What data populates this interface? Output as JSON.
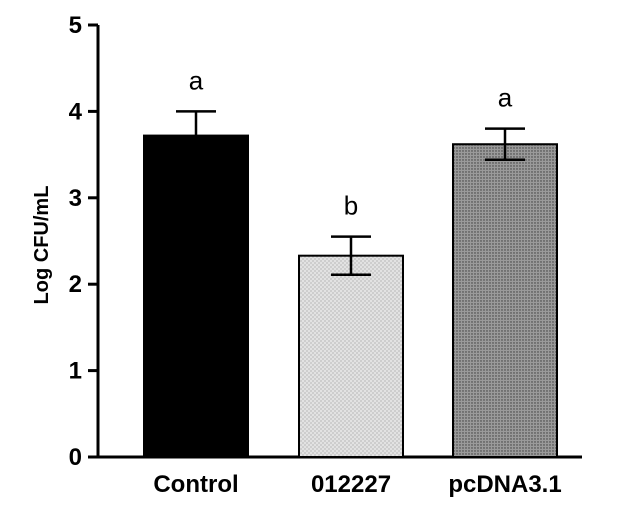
{
  "chart_data": {
    "type": "bar",
    "title": "",
    "xlabel": "",
    "ylabel": "Log CFU/mL",
    "ylim": [
      0,
      5
    ],
    "yticks": [
      0,
      1,
      2,
      3,
      4,
      5
    ],
    "grid": false,
    "categories": [
      "Control",
      "012227",
      "pcDNA3.1"
    ],
    "values": [
      3.72,
      2.33,
      3.62
    ],
    "errors": [
      0.28,
      0.22,
      0.18
    ],
    "significance": [
      "a",
      "b",
      "a"
    ],
    "bar_fills": [
      "#000000",
      "#d4d4d4",
      "#8c8c8c"
    ],
    "bar_stroke": "#000000"
  }
}
